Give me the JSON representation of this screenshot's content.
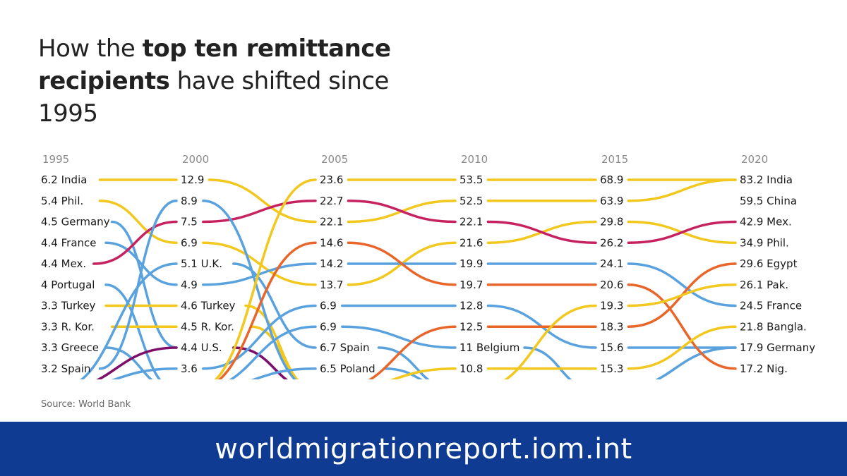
{
  "title": {
    "pre": "How the ",
    "bold1": "top ten remittance",
    "bold2": "recipients",
    "post": " have shifted since 1995"
  },
  "source": "Source: World Bank",
  "footer": {
    "url": "worldmigrationreport.iom.int"
  },
  "colors": {
    "yellow": "#f2c81e",
    "blue": "#5aa2de",
    "magenta": "#c6225f",
    "orange": "#e8662a",
    "purple": "#7d0f6b",
    "footer_bg": "#0f3b93"
  },
  "chart_data": {
    "type": "bump",
    "years": [
      "1995",
      "2000",
      "2005",
      "2010",
      "2015",
      "2020"
    ],
    "ranks_shown": 10,
    "columns": [
      {
        "year": "1995",
        "entries": [
          {
            "value": "6.2",
            "name": "India"
          },
          {
            "value": "5.4",
            "name": "Phil."
          },
          {
            "value": "4.5",
            "name": "Germany"
          },
          {
            "value": "4.4",
            "name": "France"
          },
          {
            "value": "4.4",
            "name": "Mex."
          },
          {
            "value": "4",
            "name": "Portugal"
          },
          {
            "value": "3.3",
            "name": "Turkey"
          },
          {
            "value": "3.3",
            "name": "R. Kor."
          },
          {
            "value": "3.3",
            "name": "Greece"
          },
          {
            "value": "3.2",
            "name": "Spain"
          }
        ]
      },
      {
        "year": "2000",
        "entries": [
          {
            "value": "12.9",
            "name": ""
          },
          {
            "value": "8.9",
            "name": ""
          },
          {
            "value": "7.5",
            "name": ""
          },
          {
            "value": "6.9",
            "name": ""
          },
          {
            "value": "5.1",
            "name": "U.K."
          },
          {
            "value": "4.9",
            "name": ""
          },
          {
            "value": "4.6",
            "name": "Turkey"
          },
          {
            "value": "4.5",
            "name": "R. Kor."
          },
          {
            "value": "4.4",
            "name": "U.S."
          },
          {
            "value": "3.6",
            "name": ""
          }
        ]
      },
      {
        "year": "2005",
        "entries": [
          {
            "value": "23.6",
            "name": ""
          },
          {
            "value": "22.7",
            "name": ""
          },
          {
            "value": "22.1",
            "name": ""
          },
          {
            "value": "14.6",
            "name": ""
          },
          {
            "value": "14.2",
            "name": ""
          },
          {
            "value": "13.7",
            "name": ""
          },
          {
            "value": "6.9",
            "name": ""
          },
          {
            "value": "6.9",
            "name": ""
          },
          {
            "value": "6.7",
            "name": "Spain"
          },
          {
            "value": "6.5",
            "name": "Poland"
          }
        ]
      },
      {
        "year": "2010",
        "entries": [
          {
            "value": "53.5",
            "name": ""
          },
          {
            "value": "52.5",
            "name": ""
          },
          {
            "value": "22.1",
            "name": ""
          },
          {
            "value": "21.6",
            "name": ""
          },
          {
            "value": "19.9",
            "name": ""
          },
          {
            "value": "19.7",
            "name": ""
          },
          {
            "value": "12.8",
            "name": ""
          },
          {
            "value": "12.5",
            "name": ""
          },
          {
            "value": "11",
            "name": "Belgium"
          },
          {
            "value": "10.8",
            "name": ""
          }
        ]
      },
      {
        "year": "2015",
        "entries": [
          {
            "value": "68.9",
            "name": ""
          },
          {
            "value": "63.9",
            "name": ""
          },
          {
            "value": "29.8",
            "name": ""
          },
          {
            "value": "26.2",
            "name": ""
          },
          {
            "value": "24.1",
            "name": ""
          },
          {
            "value": "20.6",
            "name": ""
          },
          {
            "value": "19.3",
            "name": ""
          },
          {
            "value": "18.3",
            "name": ""
          },
          {
            "value": "15.6",
            "name": ""
          },
          {
            "value": "15.3",
            "name": ""
          }
        ]
      },
      {
        "year": "2020",
        "entries": [
          {
            "value": "83.2",
            "name": "India"
          },
          {
            "value": "59.5",
            "name": "China"
          },
          {
            "value": "42.9",
            "name": "Mex."
          },
          {
            "value": "34.9",
            "name": "Phil."
          },
          {
            "value": "29.6",
            "name": "Egypt"
          },
          {
            "value": "26.1",
            "name": "Pak."
          },
          {
            "value": "24.5",
            "name": "France"
          },
          {
            "value": "21.8",
            "name": "Bangla."
          },
          {
            "value": "17.9",
            "name": "Germany"
          },
          {
            "value": "17.2",
            "name": "Nig."
          }
        ]
      }
    ],
    "series": [
      {
        "color": "yellow",
        "ranks": [
          1,
          1,
          3,
          2,
          2,
          1
        ]
      },
      {
        "color": "yellow",
        "ranks": [
          2,
          4,
          6,
          4,
          3,
          4
        ]
      },
      {
        "color": "blue",
        "ranks": [
          3,
          9,
          11,
          11,
          11,
          9
        ]
      },
      {
        "color": "blue",
        "ranks": [
          4,
          6,
          5,
          5,
          5,
          7
        ]
      },
      {
        "color": "magenta",
        "ranks": [
          5,
          3,
          2,
          3,
          4,
          3
        ]
      },
      {
        "color": "blue",
        "ranks": [
          6,
          11,
          11,
          11,
          11,
          11
        ]
      },
      {
        "color": "yellow",
        "ranks": [
          7,
          7,
          11,
          11,
          11,
          11
        ]
      },
      {
        "color": "yellow",
        "ranks": [
          8,
          8,
          11,
          11,
          11,
          11
        ]
      },
      {
        "color": "blue",
        "ranks": [
          9,
          11,
          11,
          11,
          11,
          11
        ]
      },
      {
        "color": "blue",
        "ranks": [
          10,
          2,
          11,
          11,
          11,
          11
        ]
      },
      {
        "color": "blue",
        "ranks": [
          11,
          5,
          9,
          11,
          11,
          11
        ]
      },
      {
        "color": "purple",
        "ranks": [
          11,
          9,
          11,
          11,
          11,
          11
        ]
      },
      {
        "color": "blue",
        "ranks": [
          11,
          10,
          7,
          7,
          9,
          9
        ]
      },
      {
        "color": "yellow",
        "ranks": [
          11,
          11,
          1,
          1,
          1,
          1
        ]
      },
      {
        "color": "orange",
        "ranks": [
          11,
          11,
          4,
          6,
          6,
          10
        ]
      },
      {
        "color": "blue",
        "ranks": [
          11,
          11,
          8,
          9,
          11,
          11
        ]
      },
      {
        "color": "blue",
        "ranks": [
          11,
          11,
          10,
          11,
          11,
          11
        ]
      },
      {
        "color": "orange",
        "ranks": [
          11,
          11,
          11,
          8,
          8,
          5
        ]
      },
      {
        "color": "yellow",
        "ranks": [
          11,
          11,
          11,
          10,
          10,
          8
        ]
      },
      {
        "color": "yellow",
        "ranks": [
          11,
          11,
          11,
          11,
          7,
          6
        ]
      }
    ]
  }
}
